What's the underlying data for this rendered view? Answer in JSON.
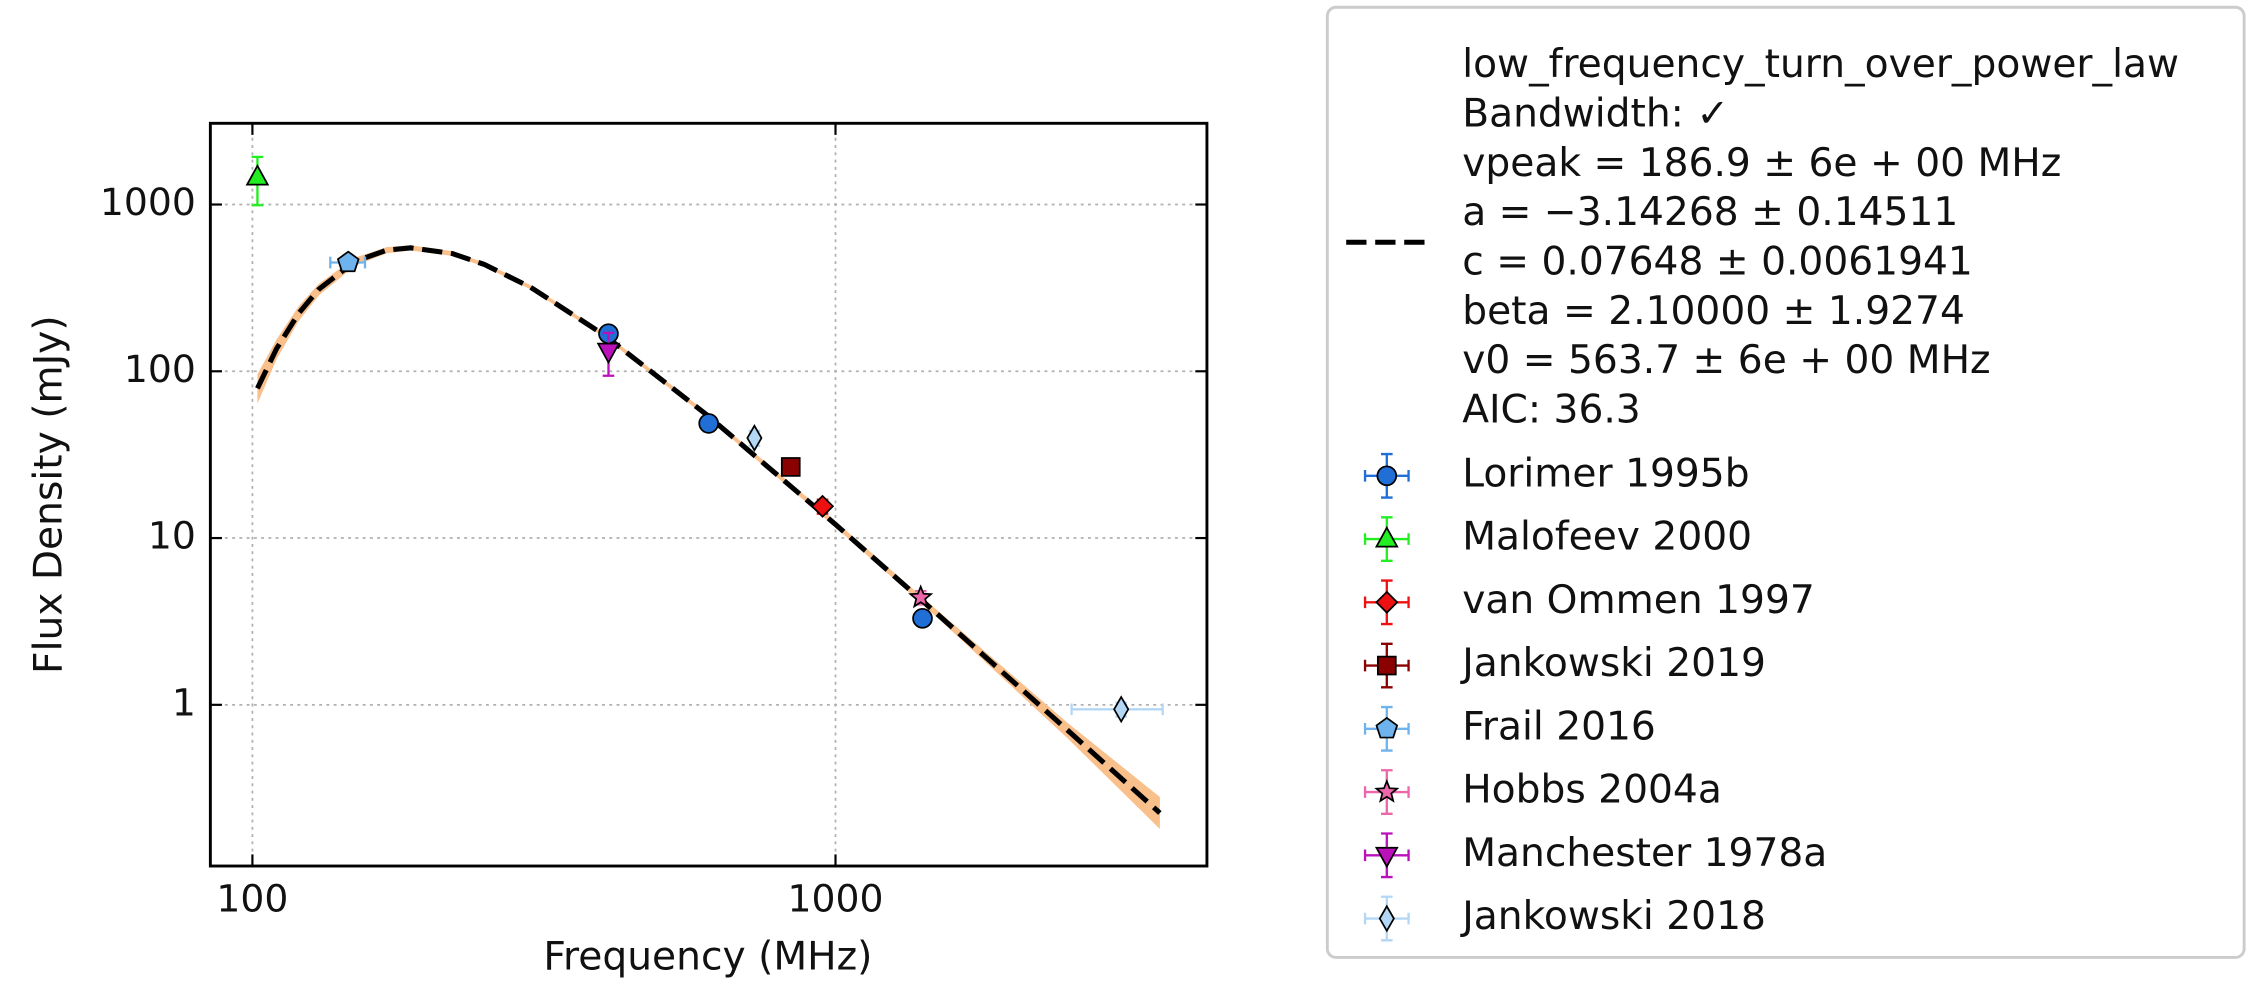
{
  "chart_data": {
    "type": "scatter",
    "xlabel": "Frequency (MHz)",
    "ylabel": "Flux Density (mJy)",
    "log_x": true,
    "log_y": true,
    "grid": true,
    "xlim": [
      84.7,
      4335
    ],
    "ylim": [
      0.108,
      3069
    ],
    "xticks": [
      100,
      1000
    ],
    "yticks": [
      1,
      10,
      100,
      1000
    ],
    "legend": "outside right",
    "fit": {
      "label_lines": [
        "low_frequency_turn_over_power_law",
        "Bandwidth: ✓",
        "vpeak = 186.9 ± 6e + 00 MHz",
        "a = −3.14268 ± 0.14511",
        "c = 0.07648 ± 0.0061941",
        "beta = 2.10000 ± 1.9274",
        "v0 = 563.7 ± 6e + 00 MHz",
        "AIC: 36.3"
      ],
      "color": "#000000",
      "band_color": "#f9c08c",
      "x": [
        102,
        110,
        120,
        130,
        150,
        170,
        186.9,
        220,
        250,
        300,
        400,
        600,
        1000,
        1500,
        2500,
        3600
      ],
      "values": [
        79.0,
        136.6,
        222.4,
        310.6,
        456,
        533,
        549.7,
        508.5,
        436.7,
        319,
        166.1,
        55.2,
        12.07,
        3.465,
        0.7045,
        0.2246
      ],
      "band_lower": [
        64,
        118,
        200,
        285,
        430,
        510,
        530,
        492,
        425,
        310,
        161,
        53.5,
        11.6,
        3.3,
        0.63,
        0.18
      ],
      "band_upper": [
        96,
        155,
        245,
        335,
        480,
        555,
        570,
        525,
        448,
        328,
        171,
        57,
        12.6,
        3.65,
        0.78,
        0.28
      ]
    },
    "series": [
      {
        "name": "Lorimer 1995b",
        "color": "#1f6fd6",
        "marker": "o",
        "x": [
          408,
          606,
          1410
        ],
        "values": [
          168,
          48.7,
          3.3
        ],
        "yerr": [
          17,
          5,
          0.33
        ],
        "xerr": [
          0,
          0,
          0
        ]
      },
      {
        "name": "Malofeev 2000",
        "color": "#22ee22",
        "marker": "^",
        "x": [
          102
        ],
        "values": [
          1460
        ],
        "yerr": [
          470
        ],
        "xerr": [
          0
        ]
      },
      {
        "name": "van Ommen 1997",
        "color": "#ee1111",
        "marker": "D",
        "x": [
          950
        ],
        "values": [
          15.5
        ],
        "yerr": [
          1.5
        ],
        "xerr": [
          0
        ]
      },
      {
        "name": "Jankowski 2019",
        "color": "#8b0000",
        "marker": "s",
        "x": [
          838
        ],
        "values": [
          26.7
        ],
        "yerr": [
          2.5
        ],
        "xerr": [
          0
        ]
      },
      {
        "name": "Frail 2016",
        "color": "#6fb3ee",
        "marker": "p",
        "x": [
          146
        ],
        "values": [
          449
        ],
        "yerr": [
          45
        ],
        "xerr": [
          10
        ]
      },
      {
        "name": "Hobbs 2004a",
        "color": "#ee66aa",
        "marker": "*",
        "x": [
          1400
        ],
        "values": [
          4.4
        ],
        "yerr": [
          0.4
        ],
        "xerr": [
          0
        ]
      },
      {
        "name": "Manchester 1978a",
        "color": "#bb11bb",
        "marker": "v",
        "x": [
          408
        ],
        "values": [
          132
        ],
        "yerr": [
          38
        ],
        "xerr": [
          0
        ]
      },
      {
        "name": "Jankowski 2018",
        "color": "#b3d7f5",
        "marker": "d",
        "x": [
          726,
          3090
        ],
        "values": [
          39.8,
          0.94
        ],
        "yerr": [
          4,
          0.09
        ],
        "xerr": [
          0,
          550
        ]
      }
    ]
  }
}
